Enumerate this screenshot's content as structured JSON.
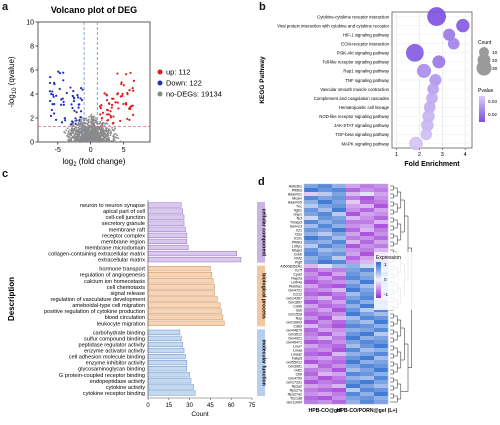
{
  "panels": {
    "a": "a",
    "b": "b",
    "c": "c",
    "d": "d"
  },
  "chart_data": [
    {
      "panel": "a",
      "type": "scatter",
      "title": "Volcano plot of DEG",
      "xlabel_main": "log",
      "xlabel_sub": "2",
      "xlabel_tail": " (fold change)",
      "ylabel_main": "-log",
      "ylabel_sub": "10",
      "ylabel_tail": " (qvalue)",
      "xlim": [
        -8,
        9
      ],
      "ylim": [
        0,
        10
      ],
      "x_ticks": [
        -5,
        0,
        5
      ],
      "y_ticks": [
        0,
        2,
        4,
        6,
        8,
        10
      ],
      "fc_cutoff": [
        -1,
        1
      ],
      "q_cutoff": 1.3,
      "legend_position": "right",
      "colors": {
        "up": "#e41a1c",
        "down": "#1f2fbf",
        "none": "#8a8a8a"
      },
      "series": [
        {
          "key": "up",
          "name": "up: 112",
          "count": 112
        },
        {
          "key": "down",
          "name": "Down: 122",
          "count": 122
        },
        {
          "key": "none",
          "name": "no-DEGs: 19134",
          "count": 19134
        }
      ]
    },
    {
      "panel": "b",
      "type": "scatter",
      "xlabel": "Fold Enrichment",
      "ylabel": "KEGG Pathway",
      "xlim": [
        0.8,
        4.3
      ],
      "x_ticks": [
        1,
        2,
        3,
        4
      ],
      "grid": true,
      "legend_position": "right",
      "size_legend": {
        "title": "Count",
        "values": [
          10,
          20,
          30
        ]
      },
      "color_legend": {
        "title": "Pvalue",
        "ticks": [
          "0.03",
          "0.02"
        ],
        "low": "#7a4fe0",
        "high": "#d9cdf7"
      },
      "points": [
        {
          "label": "Cytokine-cytokine receptor interaction",
          "x": 2.75,
          "count": 30,
          "p": 0.01
        },
        {
          "label": "Viral protein interaction with cytokine and cytokine receptor",
          "x": 3.9,
          "count": 12,
          "p": 0.012
        },
        {
          "label": "HIF-1 signaling pathway",
          "x": 3.3,
          "count": 9,
          "p": 0.018
        },
        {
          "label": "ECM-receptor interaction",
          "x": 3.5,
          "count": 8,
          "p": 0.02
        },
        {
          "label": "PI3K-Akt signaling pathway",
          "x": 1.8,
          "count": 26,
          "p": 0.012
        },
        {
          "label": "Toll-like receptor signaling pathway",
          "x": 2.85,
          "count": 11,
          "p": 0.018
        },
        {
          "label": "Rap1 signaling pathway",
          "x": 2.2,
          "count": 14,
          "p": 0.022
        },
        {
          "label": "TNF signaling pathway",
          "x": 2.7,
          "count": 9,
          "p": 0.024
        },
        {
          "label": "Vascular smooth muscle contraction",
          "x": 2.6,
          "count": 8,
          "p": 0.026
        },
        {
          "label": "Complement and coagulation cascades",
          "x": 2.55,
          "count": 8,
          "p": 0.028
        },
        {
          "label": "Hematopoietic cell lineage",
          "x": 2.45,
          "count": 8,
          "p": 0.028
        },
        {
          "label": "NOD-like receptor signaling pathway",
          "x": 2.4,
          "count": 10,
          "p": 0.03
        },
        {
          "label": "JAK-STAT signaling pathway",
          "x": 2.35,
          "count": 10,
          "p": 0.03
        },
        {
          "label": "TGF-beta signaling pathway",
          "x": 2.3,
          "count": 8,
          "p": 0.032
        },
        {
          "label": "MAPK signaling pathway",
          "x": 1.85,
          "count": 13,
          "p": 0.033
        }
      ]
    },
    {
      "panel": "c",
      "type": "bar",
      "orientation": "horizontal",
      "xlabel": "Count",
      "ylabel": "Description",
      "xlim": [
        0,
        75
      ],
      "x_ticks": [
        0,
        15,
        30,
        45,
        60,
        75
      ],
      "groups": [
        {
          "name": "cellular component",
          "color": "#d9c7ef",
          "edge": "#8f74b8",
          "band": "#c9b4e6",
          "categories": [
            "neuron to neuron synapse",
            "apical part of cell",
            "cell-cell junction",
            "secretory granule",
            "membrane raft",
            "receptor complex",
            "membrane region",
            "membrane microdomain",
            "collagen-containing extracellular matrix",
            "extracellular matrix"
          ],
          "values": [
            24,
            25,
            26,
            26,
            27,
            28,
            28,
            29,
            64,
            67
          ]
        },
        {
          "name": "biological process",
          "color": "#f6d4b5",
          "edge": "#c98a55",
          "band": "#f3c69e",
          "categories": [
            "hormone transport",
            "regulation of angiogenesis",
            "calcium ion homeostasis",
            "cell chemotaxis",
            "signal release",
            "regulation of vasculature development",
            "ameboidal-type cell migration",
            "positive regulation of cytokine production",
            "blood circulation",
            "leukocyte migration"
          ],
          "values": [
            45,
            46,
            47,
            48,
            48,
            50,
            52,
            53,
            54,
            55
          ]
        },
        {
          "name": "molecular function",
          "color": "#c3d8f1",
          "edge": "#6b93c6",
          "band": "#b6cfee",
          "categories": [
            "carbohydrate binding",
            "sulfur compound binding",
            "peptidase regulator activity",
            "enzyme activator activity",
            "cell adhesion molecule binding",
            "enzyme inhibitor activity",
            "glycosaminoglycan binding",
            "G protein-coupled receptor binding",
            "endopeptidase activity",
            "cytokine activity",
            "cytokine receptor binding"
          ],
          "values": [
            23,
            24,
            25,
            26,
            27,
            28,
            28,
            30,
            31,
            33,
            34
          ]
        }
      ]
    },
    {
      "panel": "d",
      "type": "heatmap",
      "columns": [
        "HPB-CO@gel",
        "HPB-CO/PORN@gel (L+)"
      ],
      "n_columns": 6,
      "legend_title": "Expression",
      "legend_ticks": [
        "1",
        "0",
        "-1"
      ],
      "legend_position": "right",
      "colors": {
        "high": "#2f6fd0",
        "mid": "#f3f1fb",
        "low": "#9b2fd6"
      },
      "rows": [
        "Aldh3b1",
        "Pfkfb3",
        "Adamts1",
        "Mcam",
        "Adamts5",
        "Tnc",
        "Itgb1",
        "Gyp1",
        "Ncf",
        "Tnfaip3",
        "Serinc3",
        "Il21",
        "Ctss",
        "Il1rl1",
        "Pfkfb3",
        "Lrrfip1",
        "Mrap2",
        "Coldl",
        "Rnf2",
        "Pigfl",
        "AI5008352A1",
        "Il17f",
        "Cpa3",
        "Rap2a",
        "Lilrb4a",
        "Plekha1",
        "Gm4721",
        "Ccl12",
        "Gm14367",
        "Gm1857",
        "Cd96",
        "Sell",
        "Gm1528",
        "Nsp",
        "Gm10603",
        "Cd69",
        "Gm44679",
        "Gm3512",
        "Gm4921",
        "Gm49471",
        "Lmo7",
        "Lmaa",
        "Lmaa2",
        "Fabp5",
        "Gm55012",
        "Gm3961",
        "Odf1",
        "Cbfl",
        "Gm4700",
        "Gm17331",
        "Rpsa2",
        "Rps27a",
        "Rps27a2",
        "Tbc1d8",
        "Gm11004"
      ],
      "values": [
        [
          0.6,
          0.8,
          0.5,
          -0.4,
          -0.6,
          -0.5
        ],
        [
          0.9,
          0.7,
          0.8,
          -0.7,
          -0.5,
          -0.6
        ],
        [
          -0.2,
          0.3,
          0.6,
          -0.3,
          0.1,
          -0.4
        ],
        [
          0.8,
          0.6,
          0.7,
          -0.6,
          -0.8,
          -0.5
        ],
        [
          0.5,
          0.9,
          0.6,
          -0.2,
          -0.7,
          -0.6
        ],
        [
          0.3,
          0.6,
          0.7,
          -0.4,
          -0.3,
          -0.8
        ],
        [
          0.7,
          0.4,
          0.9,
          -0.5,
          -0.7,
          -0.4
        ],
        [
          0.6,
          0.8,
          0.3,
          -0.8,
          -0.4,
          -0.5
        ],
        [
          0.2,
          0.7,
          0.6,
          -0.3,
          -0.5,
          -0.7
        ],
        [
          0.8,
          0.5,
          0.7,
          -0.6,
          -0.6,
          -0.3
        ],
        [
          0.4,
          0.8,
          0.5,
          -0.5,
          -0.4,
          -0.8
        ],
        [
          0.7,
          0.6,
          0.9,
          -0.7,
          -0.3,
          -0.6
        ],
        [
          0.5,
          0.3,
          0.6,
          -0.4,
          -0.8,
          -0.5
        ],
        [
          0.9,
          0.7,
          0.4,
          -0.6,
          -0.5,
          -0.7
        ],
        [
          0.6,
          0.5,
          0.8,
          -0.3,
          -0.7,
          -0.4
        ],
        [
          0.3,
          0.8,
          0.6,
          -0.8,
          -0.5,
          -0.6
        ],
        [
          0.7,
          0.4,
          0.5,
          -0.5,
          -0.6,
          -0.3
        ],
        [
          0.8,
          0.6,
          0.7,
          -0.4,
          -0.8,
          -0.7
        ],
        [
          0.5,
          0.7,
          0.3,
          -0.7,
          -0.4,
          -0.5
        ],
        [
          0.6,
          0.9,
          0.8,
          -0.5,
          -0.3,
          -0.8
        ],
        [
          -0.3,
          0.1,
          0.4,
          0.5,
          0.2,
          0.8
        ],
        [
          -0.7,
          -0.5,
          -0.6,
          0.6,
          0.8,
          0.5
        ],
        [
          -0.5,
          -0.8,
          -0.4,
          0.7,
          0.5,
          0.9
        ],
        [
          -0.6,
          -0.4,
          -0.7,
          0.8,
          0.6,
          0.4
        ],
        [
          -0.8,
          -0.6,
          -0.5,
          0.5,
          0.9,
          0.7
        ],
        [
          -0.4,
          -0.7,
          -0.8,
          0.7,
          0.4,
          0.6
        ],
        [
          -0.6,
          -0.5,
          -0.3,
          0.9,
          0.6,
          0.5
        ],
        [
          -0.7,
          -0.8,
          -0.6,
          0.4,
          0.7,
          0.8
        ],
        [
          -0.5,
          -0.3,
          -0.7,
          0.6,
          0.8,
          0.3
        ],
        [
          -0.8,
          -0.6,
          -0.4,
          0.8,
          0.5,
          0.7
        ],
        [
          -0.4,
          -0.7,
          -0.6,
          0.5,
          0.9,
          0.6
        ],
        [
          -0.6,
          -0.4,
          -0.8,
          0.7,
          0.3,
          0.8
        ],
        [
          -0.7,
          -0.6,
          -0.5,
          0.9,
          0.6,
          0.4
        ],
        [
          -0.5,
          -0.8,
          -0.3,
          0.4,
          0.8,
          0.7
        ],
        [
          -0.8,
          -0.5,
          -0.7,
          0.6,
          0.4,
          0.9
        ],
        [
          -0.3,
          -0.6,
          -0.8,
          0.8,
          0.7,
          0.5
        ],
        [
          -0.7,
          -0.4,
          -0.5,
          0.5,
          0.6,
          0.8
        ],
        [
          -0.6,
          -0.8,
          -0.4,
          0.7,
          0.9,
          0.3
        ],
        [
          -0.5,
          -0.3,
          -0.6,
          0.9,
          0.5,
          0.6
        ],
        [
          -0.8,
          -0.7,
          -0.5,
          0.6,
          0.8,
          0.7
        ],
        [
          -0.4,
          -0.6,
          -0.7,
          0.4,
          0.7,
          0.9
        ],
        [
          -0.6,
          -0.5,
          -0.8,
          0.8,
          0.4,
          0.5
        ],
        [
          -0.7,
          -0.8,
          -0.3,
          0.5,
          0.6,
          0.8
        ],
        [
          -0.5,
          -0.4,
          -0.6,
          0.7,
          0.9,
          0.4
        ],
        [
          -0.8,
          -0.6,
          -0.7,
          0.9,
          0.5,
          0.6
        ],
        [
          -0.3,
          -0.7,
          -0.5,
          0.6,
          0.8,
          0.7
        ],
        [
          -0.6,
          -0.5,
          -0.8,
          0.4,
          0.6,
          0.9
        ],
        [
          -0.7,
          -0.3,
          -0.4,
          0.8,
          0.7,
          0.5
        ],
        [
          -0.5,
          -0.8,
          -0.6,
          0.5,
          0.4,
          0.8
        ],
        [
          -0.8,
          -0.6,
          -0.7,
          0.7,
          0.9,
          0.6
        ],
        [
          -0.4,
          -0.5,
          -0.3,
          0.9,
          0.6,
          0.4
        ],
        [
          -0.6,
          -0.7,
          -0.8,
          0.3,
          0.8,
          0.7
        ],
        [
          -0.5,
          -0.4,
          -0.6,
          0.8,
          0.5,
          0.9
        ],
        [
          -0.7,
          -0.8,
          -0.5,
          0.6,
          0.7,
          0.5
        ],
        [
          -0.6,
          -0.5,
          -0.7,
          0.5,
          0.8,
          0.6
        ]
      ]
    }
  ]
}
